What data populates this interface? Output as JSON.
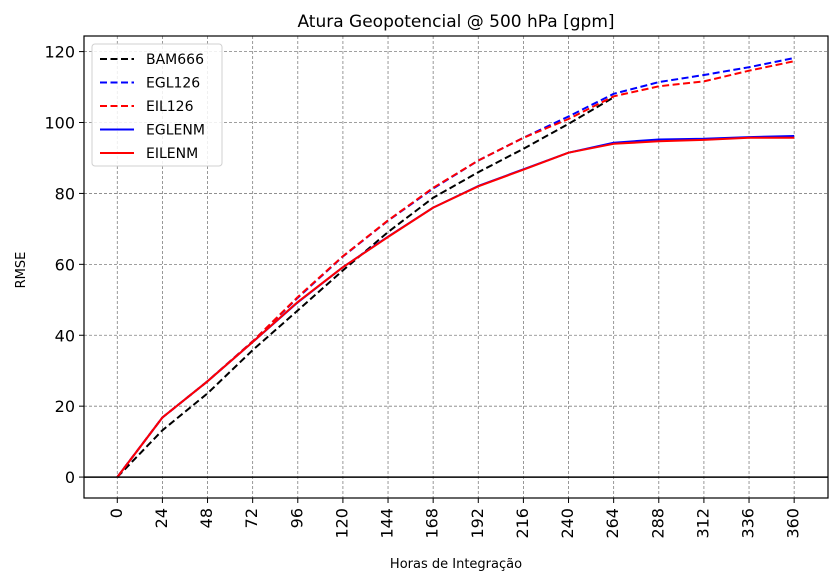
{
  "chart_data": {
    "type": "line",
    "title": "Atura Geopotencial @ 500 hPa [gpm]",
    "xlabel": "Horas de Integração",
    "ylabel": "RMSE",
    "x": [
      0,
      24,
      48,
      72,
      96,
      120,
      144,
      168,
      192,
      216,
      240,
      264,
      288,
      312,
      336,
      360
    ],
    "xticks": [
      "0",
      "24",
      "48",
      "72",
      "96",
      "120",
      "144",
      "168",
      "192",
      "216",
      "240",
      "264",
      "288",
      "312",
      "336",
      "360"
    ],
    "yticks": [
      "0",
      "20",
      "40",
      "60",
      "80",
      "100",
      "120"
    ],
    "ytick_values": [
      0,
      20,
      40,
      60,
      80,
      100,
      120
    ],
    "xlim": [
      -17.7,
      378
    ],
    "ylim": [
      -5.9,
      124.4
    ],
    "grid": true,
    "zero_line": true,
    "legend_position": "top-left",
    "series": [
      {
        "name": "BAM666",
        "color": "#000000",
        "style": "dashed",
        "values": [
          0,
          13.2,
          23.6,
          35.8,
          47.0,
          58.3,
          69.1,
          78.8,
          86.0,
          92.6,
          99.6,
          107.1,
          null,
          null,
          null,
          null
        ]
      },
      {
        "name": "EGL126",
        "color": "#0000ff",
        "style": "dashed",
        "values": [
          0,
          16.8,
          27.0,
          38.3,
          50.6,
          62.2,
          72.3,
          81.4,
          89.3,
          95.7,
          101.7,
          108.1,
          111.4,
          113.4,
          115.6,
          118.2
        ]
      },
      {
        "name": "EIL126",
        "color": "#ff0000",
        "style": "dashed",
        "values": [
          0,
          16.8,
          27.0,
          38.3,
          50.8,
          62.3,
          72.4,
          81.6,
          89.3,
          95.7,
          101.0,
          107.4,
          110.2,
          111.6,
          114.6,
          117.3
        ]
      },
      {
        "name": "EGLENM",
        "color": "#0000ff",
        "style": "solid",
        "values": [
          0,
          16.8,
          27.0,
          38.1,
          49.3,
          59.2,
          67.8,
          76.0,
          82.1,
          86.8,
          91.5,
          94.3,
          95.2,
          95.4,
          95.9,
          96.2
        ]
      },
      {
        "name": "EILENM",
        "color": "#ff0000",
        "style": "solid",
        "values": [
          0,
          16.8,
          27.0,
          38.1,
          49.4,
          59.2,
          67.7,
          76.0,
          82.0,
          86.7,
          91.5,
          94.0,
          94.7,
          95.1,
          95.7,
          95.7
        ]
      }
    ]
  }
}
